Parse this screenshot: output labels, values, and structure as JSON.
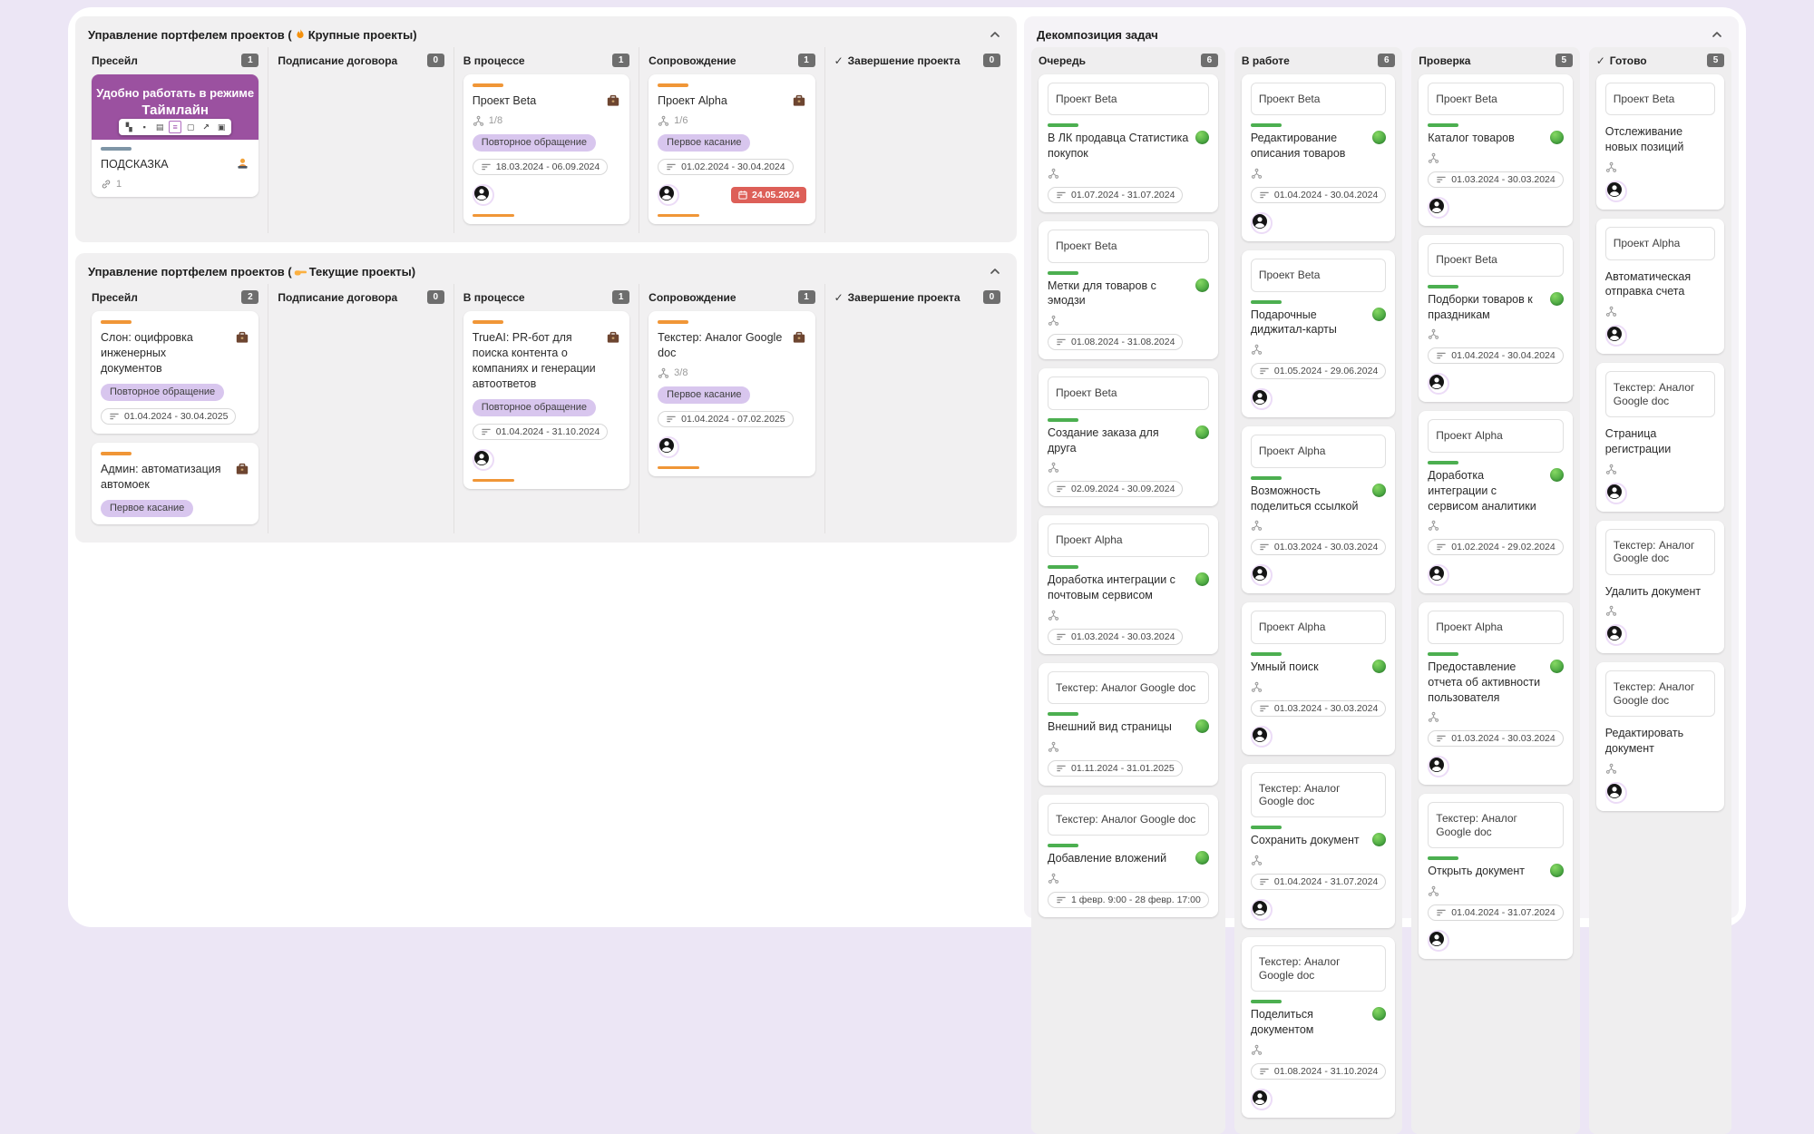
{
  "colors": {
    "page_bg": "#ECE6F5",
    "accent_orange": "#F09637",
    "tag_purple": "#D8C6EE",
    "cover_purple": "#9B51A0",
    "due_red": "#DD5F58",
    "progress_green": "#4CAF50",
    "slate_line": "#7E95A6"
  },
  "icons": {
    "board1_title": "flame-icon",
    "board2_title": "pointing-hand-icon",
    "card_owner": "briefcase-icon",
    "promo_person": "technologist-icon",
    "collapse": "chevron-up-icon",
    "due": "calendar-icon",
    "dates": "date-range-icon",
    "children": "subtasks-icon",
    "member": "user-avatar-icon",
    "links": "link-icon",
    "done_column": "checkmark-icon",
    "status": "status-green-dot"
  },
  "boards": {
    "portfolio_large": {
      "title_pre": "Управление портфелем проектов (",
      "title_icon": "flame",
      "title_post": "Крупные проекты)",
      "columns": [
        {
          "name": "Пресейл",
          "count": "1",
          "cards": [
            {
              "image_lines": [
                "Удобно работать в режиме",
                "Таймлайн"
              ],
              "toolbar": {
                "icons": [
                  "layout-icon",
                  "kanban-icon",
                  "table-icon",
                  "timeline-icon",
                  "calendar-icon",
                  "chart-icon",
                  "compact-icon"
                ],
                "active_index": 3
              },
              "topline": "slate",
              "title": "ПОДСКАЗКА",
              "person_icon": "technologist",
              "links": "1"
            }
          ]
        },
        {
          "name": "Подписание договора",
          "count": "0",
          "cards": []
        },
        {
          "name": "В процессе",
          "count": "1",
          "cards": [
            {
              "topline": "orange",
              "title": "Проект Beta",
              "briefcase": true,
              "subtasks": "1/8",
              "tag": "Повторное обращение",
              "date": "18.03.2024 - 06.09.2024",
              "avatar": true,
              "bottomline": true
            }
          ]
        },
        {
          "name": "Сопровождение",
          "count": "1",
          "cards": [
            {
              "topline": "orange",
              "title": "Проект Alpha",
              "briefcase": true,
              "subtasks": "1/6",
              "tag": "Первое касание",
              "date": "01.02.2024 - 30.04.2024",
              "avatar": true,
              "due": "24.05.2024",
              "bottomline": true
            }
          ]
        },
        {
          "name": "Завершение проекта",
          "count": "0",
          "check": true,
          "cards": []
        }
      ]
    },
    "portfolio_current": {
      "title_pre": "Управление портфелем проектов (",
      "title_icon": "pointing-hand",
      "title_post": "Текущие проекты)",
      "columns": [
        {
          "name": "Пресейл",
          "count": "2",
          "cards": [
            {
              "topline": "orange",
              "title": "Слон: оцифровка инженерных документов",
              "briefcase": true,
              "tag": "Повторное обращение",
              "date": "01.04.2024 - 30.04.2025"
            },
            {
              "topline": "orange",
              "title": "Админ: автоматизация автомоек",
              "briefcase": true,
              "tag": "Первое касание"
            }
          ]
        },
        {
          "name": "Подписание договора",
          "count": "0",
          "cards": []
        },
        {
          "name": "В процессе",
          "count": "1",
          "cards": [
            {
              "topline": "orange",
              "title": "TrueAI: PR-бот для поиска контента о компаниях и генерации автоответов",
              "briefcase": true,
              "tag": "Повторное обращение",
              "date": "01.04.2024 - 31.10.2024",
              "avatar": true,
              "bottomline": true
            }
          ]
        },
        {
          "name": "Сопровождение",
          "count": "1",
          "cards": [
            {
              "topline": "orange",
              "title": "Текстер: Аналог Google doc",
              "briefcase": true,
              "subtasks": "3/8",
              "tag": "Первое касание",
              "date": "01.04.2024 - 07.02.2025",
              "avatar": true,
              "bottomline": true
            }
          ]
        },
        {
          "name": "Завершение проекта",
          "count": "0",
          "check": true,
          "cards": []
        }
      ]
    },
    "decomposition": {
      "title": "Декомпозиция задач",
      "columns": [
        {
          "name": "Очередь",
          "count": "6",
          "cards": [
            {
              "parent": "Проект Beta",
              "progress": true,
              "title": "В ЛК продавца Статистика покупок",
              "dot": true,
              "children": true,
              "date": "01.07.2024 - 31.07.2024"
            },
            {
              "parent": "Проект Beta",
              "progress": true,
              "title": "Метки для товаров с эмодзи",
              "dot": true,
              "children": true,
              "date": "01.08.2024 - 31.08.2024"
            },
            {
              "parent": "Проект Beta",
              "progress": true,
              "title": "Создание заказа для друга",
              "dot": true,
              "children": true,
              "date": "02.09.2024 - 30.09.2024"
            },
            {
              "parent": "Проект Alpha",
              "progress": true,
              "title": "Доработка интеграции с почтовым сервисом",
              "dot": true,
              "children": true,
              "date": "01.03.2024 - 30.03.2024"
            },
            {
              "parent": "Текстер: Аналог Google doc",
              "progress": true,
              "title": "Внешний вид страницы",
              "dot": true,
              "children": true,
              "date": "01.11.2024 - 31.01.2025"
            },
            {
              "parent": "Текстер: Аналог Google doc",
              "progress": true,
              "title": "Добавление вложений",
              "dot": true,
              "children": true,
              "date": "1 февр. 9:00 - 28 февр. 17:00"
            }
          ]
        },
        {
          "name": "В работе",
          "count": "6",
          "cards": [
            {
              "parent": "Проект Beta",
              "progress": true,
              "title": "Редактирование описания товаров",
              "dot": true,
              "children": true,
              "date": "01.04.2024 - 30.04.2024",
              "avatar": true
            },
            {
              "parent": "Проект Beta",
              "progress": true,
              "title": "Подарочные диджитал-карты",
              "dot": true,
              "children": true,
              "date": "01.05.2024 - 29.06.2024",
              "avatar": true
            },
            {
              "parent": "Проект Alpha",
              "progress": true,
              "title": "Возможность поделиться ссылкой",
              "dot": true,
              "children": true,
              "date": "01.03.2024 - 30.03.2024",
              "avatar": true
            },
            {
              "parent": "Проект Alpha",
              "progress": true,
              "title": "Умный поиск",
              "dot": true,
              "children": true,
              "date": "01.03.2024 - 30.03.2024",
              "avatar": true
            },
            {
              "parent": "Текстер: Аналог Google doc",
              "progress": true,
              "title": "Сохранить документ",
              "dot": true,
              "children": true,
              "date": "01.04.2024 - 31.07.2024",
              "avatar": true
            },
            {
              "parent": "Текстер: Аналог Google doc",
              "progress": true,
              "title": "Поделиться документом",
              "dot": true,
              "children": true,
              "date": "01.08.2024 - 31.10.2024",
              "avatar": true
            }
          ]
        },
        {
          "name": "Проверка",
          "count": "5",
          "cards": [
            {
              "parent": "Проект Beta",
              "progress": true,
              "title": "Каталог товаров",
              "dot": true,
              "children": true,
              "date": "01.03.2024 - 30.03.2024",
              "avatar": true
            },
            {
              "parent": "Проект Beta",
              "progress": true,
              "title": "Подборки товаров к праздникам",
              "dot": true,
              "children": true,
              "date": "01.04.2024 - 30.04.2024",
              "avatar": true
            },
            {
              "parent": "Проект Alpha",
              "progress": true,
              "title": "Доработка интеграции с сервисом аналитики",
              "dot": true,
              "children": true,
              "date": "01.02.2024 - 29.02.2024",
              "avatar": true
            },
            {
              "parent": "Проект Alpha",
              "progress": true,
              "title": "Предоставление отчета об активности пользователя",
              "dot": true,
              "children": true,
              "date": "01.03.2024 - 30.03.2024",
              "avatar": true
            },
            {
              "parent": "Текстер: Аналог Google doc",
              "progress": true,
              "title": "Открыть документ",
              "dot": true,
              "children": true,
              "date": "01.04.2024 - 31.07.2024",
              "avatar": true
            }
          ]
        },
        {
          "name": "Готово",
          "count": "5",
          "check": true,
          "cards": [
            {
              "parent": "Проект Beta",
              "title": "Отслеживание новых позиций",
              "children": true,
              "avatar": true
            },
            {
              "parent": "Проект Alpha",
              "title": "Автоматическая отправка счета",
              "children": true,
              "avatar": true
            },
            {
              "parent": "Текстер: Аналог Google doc",
              "title": "Страница регистрации",
              "children": true,
              "avatar": true
            },
            {
              "parent": "Текстер: Аналог Google doc",
              "title": "Удалить документ",
              "children": true,
              "avatar": true
            },
            {
              "parent": "Текстер: Аналог Google doc",
              "title": "Редактировать документ",
              "children": true,
              "avatar": true
            }
          ]
        }
      ]
    }
  }
}
